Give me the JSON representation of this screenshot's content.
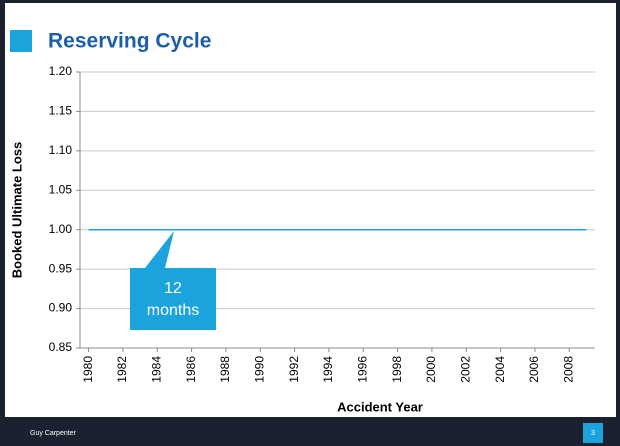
{
  "chart_data": {
    "type": "line",
    "title": "Reserving Cycle",
    "x_label": "Accident Year",
    "y_label": "Booked Ultimate Loss",
    "x": [
      1980,
      1981,
      1982,
      1983,
      1984,
      1985,
      1986,
      1987,
      1988,
      1989,
      1990,
      1991,
      1992,
      1993,
      1994,
      1995,
      1996,
      1997,
      1998,
      1999,
      2000,
      2001,
      2002,
      2003,
      2004,
      2005,
      2006,
      2007,
      2008,
      2009
    ],
    "series": [
      {
        "name": "Booked Ultimate Loss",
        "color": "#1aa3dd",
        "values": [
          1,
          1,
          1,
          1,
          1,
          1,
          1,
          1,
          1,
          1,
          1,
          1,
          1,
          1,
          1,
          1,
          1,
          1,
          1,
          1,
          1,
          1,
          1,
          1,
          1,
          1,
          1,
          1,
          1,
          1
        ]
      }
    ],
    "xlim": [
      1979.5,
      2009.5
    ],
    "xticks": [
      1980,
      1982,
      1984,
      1986,
      1988,
      1990,
      1992,
      1994,
      1996,
      1998,
      2000,
      2002,
      2004,
      2006,
      2008
    ],
    "ylim": [
      0.85,
      1.2
    ],
    "yticks": [
      0.85,
      {
        "value": 0.9,
        "label": "0.90"
      },
      0.95,
      {
        "value": 1,
        "label": "1.00"
      },
      1.05,
      {
        "value": 1.1,
        "label": "1.10"
      },
      1.15,
      {
        "value": 1.2,
        "label": "1.20"
      }
    ],
    "grid": true,
    "annotation": {
      "lines": [
        "12",
        "months"
      ]
    }
  },
  "footer": {
    "company": "Guy Carpenter",
    "page": "3"
  }
}
